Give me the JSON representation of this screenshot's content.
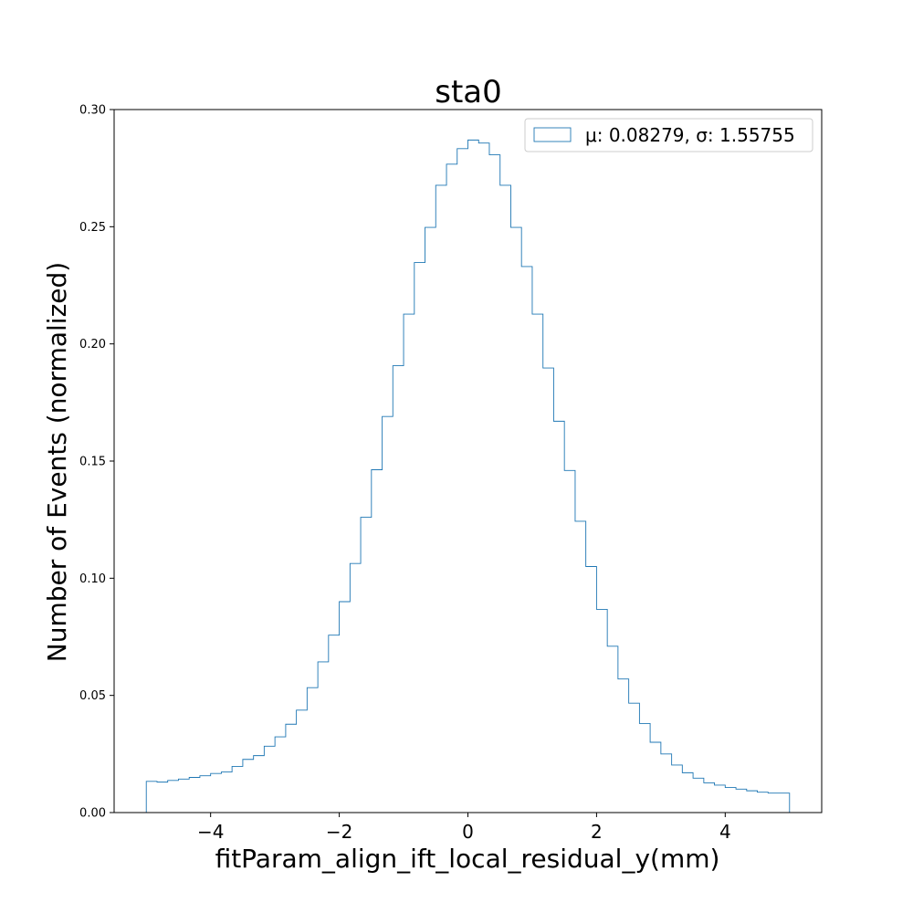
{
  "chart_data": {
    "type": "histogram",
    "title": "sta0",
    "xlabel": "fitParam_align_ift_local_residual_y(mm)",
    "ylabel": "Number of Events (normalized)",
    "xlim": [
      -5.5,
      5.5
    ],
    "ylim": [
      0.0,
      0.3
    ],
    "grid": false,
    "legend_position": "top-right",
    "line_color": "#1f77b4",
    "x_ticks": [
      -4,
      -2,
      0,
      2,
      4
    ],
    "x_tick_labels": [
      "−4",
      "−2",
      "0",
      "2",
      "4"
    ],
    "y_ticks": [
      0.0,
      0.05,
      0.1,
      0.15,
      0.2,
      0.25,
      0.3
    ],
    "y_tick_labels": [
      "0.00",
      "0.05",
      "0.10",
      "0.15",
      "0.20",
      "0.25",
      "0.30"
    ],
    "series": [
      {
        "name": "μ: 0.08279, σ: 1.55755",
        "bin_edges": [
          -5.0,
          -4.833,
          -4.667,
          -4.5,
          -4.333,
          -4.167,
          -4.0,
          -3.833,
          -3.667,
          -3.5,
          -3.333,
          -3.167,
          -3.0,
          -2.833,
          -2.667,
          -2.5,
          -2.333,
          -2.167,
          -2.0,
          -1.833,
          -1.667,
          -1.5,
          -1.333,
          -1.167,
          -1.0,
          -0.833,
          -0.667,
          -0.5,
          -0.333,
          -0.167,
          0.0,
          0.167,
          0.333,
          0.5,
          0.667,
          0.833,
          1.0,
          1.167,
          1.333,
          1.5,
          1.667,
          1.833,
          2.0,
          2.167,
          2.333,
          2.5,
          2.667,
          2.833,
          3.0,
          3.167,
          3.333,
          3.5,
          3.667,
          3.833,
          4.0,
          4.167,
          4.333,
          4.5,
          4.667,
          4.833,
          5.0
        ],
        "values": [
          0.0133,
          0.013,
          0.0137,
          0.0143,
          0.015,
          0.0157,
          0.0167,
          0.0173,
          0.0197,
          0.0227,
          0.0243,
          0.0283,
          0.0323,
          0.0377,
          0.0437,
          0.0533,
          0.0643,
          0.0757,
          0.09,
          0.1063,
          0.126,
          0.1463,
          0.169,
          0.1907,
          0.2127,
          0.2347,
          0.2497,
          0.2677,
          0.2767,
          0.2833,
          0.287,
          0.2857,
          0.2807,
          0.2677,
          0.2497,
          0.233,
          0.2127,
          0.1897,
          0.167,
          0.146,
          0.1243,
          0.105,
          0.0867,
          0.071,
          0.057,
          0.0467,
          0.038,
          0.03,
          0.025,
          0.0203,
          0.017,
          0.0147,
          0.0127,
          0.0117,
          0.0107,
          0.01,
          0.0093,
          0.0087,
          0.0083,
          0.0083
        ]
      }
    ]
  }
}
